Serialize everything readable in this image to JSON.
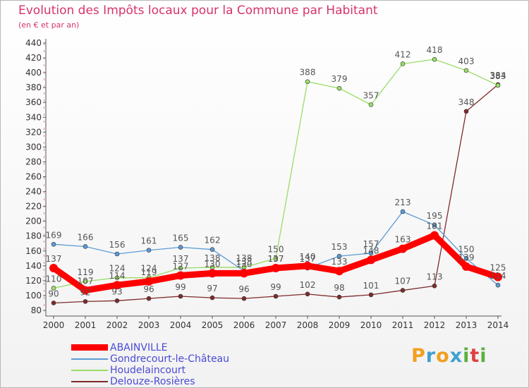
{
  "header": {
    "title": "Evolution des Impôts locaux pour la Commune par Habitant",
    "subtitle": "(en € et par an)"
  },
  "colors": {
    "title": "#d6336c",
    "legend_text": "#4a4ad6",
    "axis": "#555555",
    "label": "#555555"
  },
  "legend": {
    "items": [
      {
        "label": "ABAINVILLE",
        "color": "#ff0000",
        "width": "thick"
      },
      {
        "label": "Gondrecourt-le-Château",
        "color": "#5b9bd5",
        "width": "thin"
      },
      {
        "label": "Houdelaincourt",
        "color": "#99dd66",
        "width": "thin"
      },
      {
        "label": "Delouze-Rosières",
        "color": "#7f2b2b",
        "width": "thin"
      }
    ]
  },
  "logo": {
    "letters": [
      "P",
      "r",
      "o",
      "x",
      "i",
      "t",
      "i"
    ],
    "colors": [
      "#f0a020",
      "#3fa0d0",
      "#f0a020",
      "#3fa0d0",
      "#5ab040",
      "#e04040",
      "#5ab040"
    ]
  },
  "chart_data": {
    "type": "line",
    "title": "Evolution des Impôts locaux pour la Commune par Habitant",
    "subtitle": "(en € et par an)",
    "xlabel": "",
    "ylabel": "",
    "x": [
      2000,
      2001,
      2002,
      2003,
      2004,
      2005,
      2006,
      2007,
      2008,
      2009,
      2010,
      2011,
      2012,
      2013,
      2014
    ],
    "ylim": [
      80,
      440
    ],
    "yticks": [
      80,
      100,
      120,
      140,
      160,
      180,
      200,
      220,
      240,
      260,
      280,
      300,
      320,
      340,
      360,
      380,
      400,
      420,
      440
    ],
    "grid": false,
    "legend_position": "bottom-left",
    "series": [
      {
        "name": "Delouze-Rosières",
        "color": "#7f2b2b",
        "values": [
          90,
          92,
          93,
          96,
          99,
          97,
          96,
          99,
          102,
          98,
          101,
          107,
          113,
          348,
          384
        ]
      },
      {
        "name": "Houdelaincourt",
        "color": "#99dd66",
        "values": [
          110,
          119,
          124,
          124,
          137,
          138,
          138,
          150,
          388,
          379,
          357,
          412,
          418,
          403,
          383
        ]
      },
      {
        "name": "Gondrecourt-le-Château",
        "color": "#5b9bd5",
        "values": [
          169,
          166,
          156,
          161,
          165,
          162,
          133,
          137,
          137,
          153,
          157,
          213,
          195,
          150,
          114
        ]
      },
      {
        "name": "ABAINVILLE",
        "color": "#ff0000",
        "values": [
          137,
          107,
          114,
          119,
          127,
          130,
          130,
          137,
          140,
          133,
          148,
          163,
          181,
          139,
          125
        ]
      }
    ],
    "label_series": [
      {
        "name": "Delouze-Rosières",
        "labels": [
          "90",
          "92",
          "93",
          "96",
          "99",
          "97",
          "96",
          "99",
          "102",
          "98",
          "101",
          "107",
          "113",
          "348",
          "384"
        ]
      },
      {
        "name": "Houdelaincourt",
        "labels": [
          "110",
          "119",
          "124",
          "124",
          "137",
          "138",
          "138",
          "150",
          "388",
          "379",
          "357",
          "412",
          "418",
          "403",
          "383"
        ]
      },
      {
        "name": "Gondrecourt-le-Château",
        "labels": [
          "169",
          "166",
          "156",
          "161",
          "165",
          "162",
          "133",
          "137",
          "137",
          "153",
          "157",
          "213",
          "195",
          "150",
          "114"
        ]
      },
      {
        "name": "ABAINVILLE",
        "labels": [
          "137",
          "107",
          "114",
          "119",
          "127",
          "130",
          "130",
          "137",
          "140",
          "133",
          "148",
          "163",
          "181",
          "139",
          "125"
        ]
      }
    ]
  }
}
